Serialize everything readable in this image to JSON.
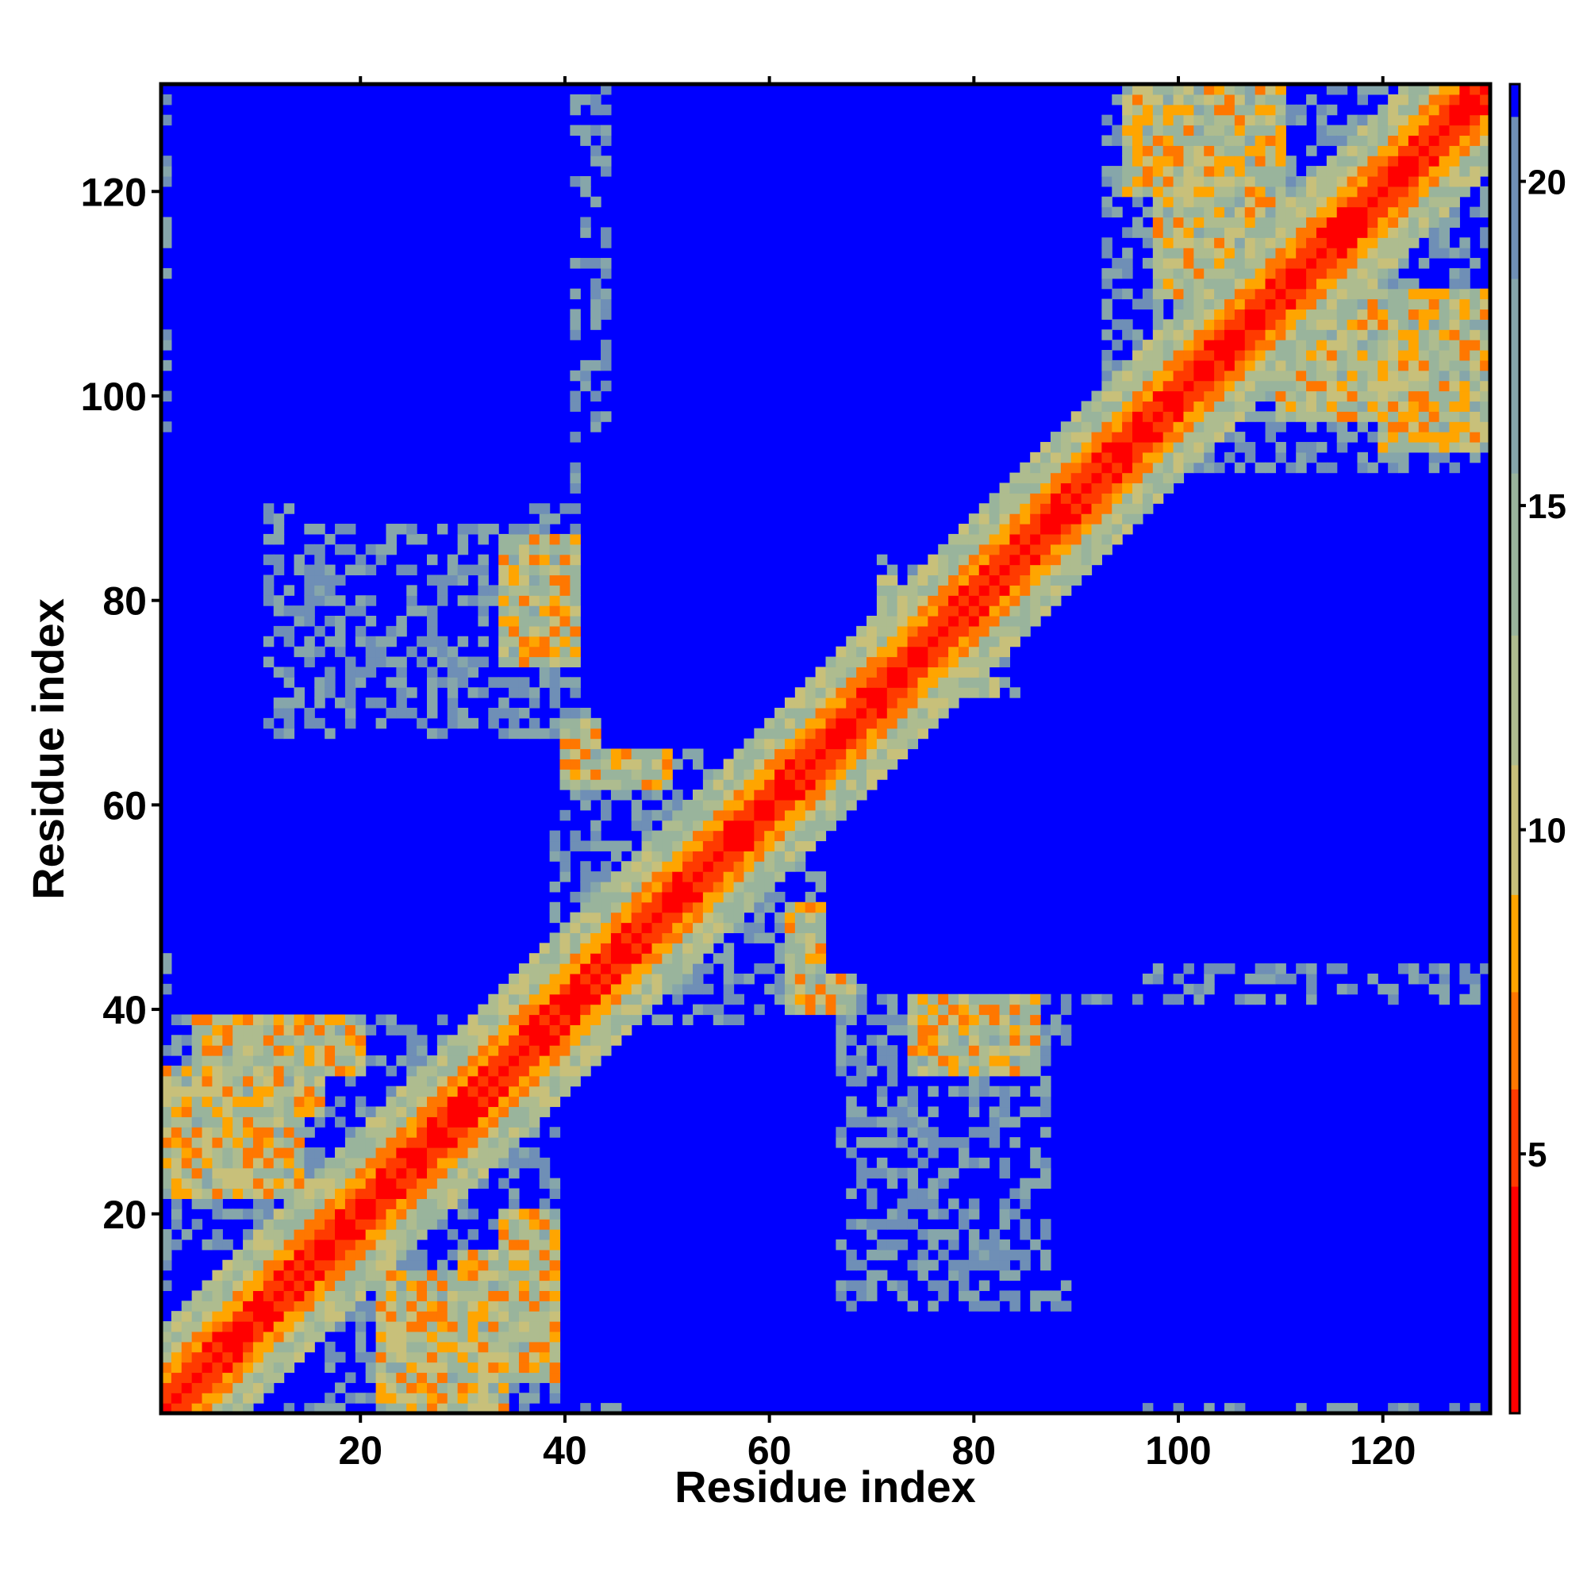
{
  "chart_data": {
    "type": "heatmap",
    "title": "",
    "xlabel": "Residue index",
    "ylabel": "Residue index",
    "n_residues": 130,
    "xlim": [
      1,
      130
    ],
    "ylim": [
      1,
      130
    ],
    "x_ticks": [
      20,
      40,
      60,
      80,
      100,
      120
    ],
    "y_ticks": [
      20,
      40,
      60,
      80,
      100,
      120
    ],
    "colorbar": {
      "ticks": [
        5,
        10,
        15,
        20
      ],
      "range": [
        1,
        21.5
      ],
      "colors": {
        "near": "#ff0000",
        "close": "#ffa500",
        "mid": "#aebc8f",
        "far_band": "#6f8fb6",
        "far": "#0000ff"
      }
    },
    "contact_blocks": [
      {
        "x": [
          4,
          16
        ],
        "y": [
          30,
          44
        ]
      },
      {
        "x": [
          22,
          34
        ],
        "y": [
          1,
          14
        ]
      },
      {
        "x": [
          34,
          46
        ],
        "y": [
          10,
          20
        ]
      },
      {
        "x": [
          34,
          46
        ],
        "y": [
          74,
          86
        ]
      },
      {
        "x": [
          74,
          86
        ],
        "y": [
          34,
          46
        ]
      },
      {
        "x": [
          5,
          14
        ],
        "y": [
          95,
          104
        ]
      },
      {
        "x": [
          95,
          104
        ],
        "y": [
          5,
          14
        ]
      },
      {
        "x": [
          98,
          110
        ],
        "y": [
          110,
          130
        ]
      },
      {
        "x": [
          110,
          130
        ],
        "y": [
          98,
          110
        ]
      },
      {
        "x": [
          120,
          130
        ],
        "y": [
          95,
          104
        ]
      },
      {
        "x": [
          62,
          72
        ],
        "y": [
          75,
          82
        ]
      },
      {
        "x": [
          75,
          82
        ],
        "y": [
          62,
          72
        ]
      },
      {
        "x": [
          40,
          50
        ],
        "y": [
          62,
          68
        ]
      }
    ],
    "far_blocks": [
      {
        "x": [
          12,
          30
        ],
        "y": [
          108,
          130
        ]
      },
      {
        "x": [
          45,
          80
        ],
        "y": [
          100,
          130
        ]
      },
      {
        "x": [
          14,
          36
        ],
        "y": [
          88,
          100
        ]
      },
      {
        "x": [
          42,
          70
        ],
        "y": [
          70,
          96
        ]
      },
      {
        "x": [
          85,
          130
        ],
        "y": [
          45,
          92
        ]
      },
      {
        "x": [
          22,
          38
        ],
        "y": [
          48,
          66
        ]
      },
      {
        "x": [
          40,
          66
        ],
        "y": [
          2,
          38
        ]
      },
      {
        "x": [
          66,
          82
        ],
        "y": [
          44,
          60
        ]
      },
      {
        "x": [
          90,
          130
        ],
        "y": [
          2,
          40
        ]
      },
      {
        "x": [
          1,
          10
        ],
        "y": [
          46,
          92
        ]
      },
      {
        "x": [
          108,
          122
        ],
        "y": [
          66,
          90
        ]
      },
      {
        "x": [
          2,
          12
        ],
        "y": [
          1,
          16
        ]
      }
    ]
  }
}
